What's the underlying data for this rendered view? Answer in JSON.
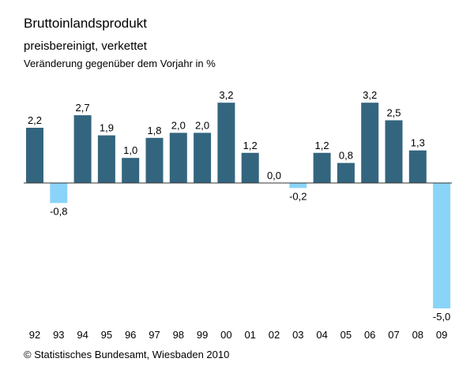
{
  "header": {
    "title": "Bruttoinlandsprodukt",
    "subtitle": "preisbereinigt, verkettet",
    "unit_note": "Veränderung gegenüber dem Vorjahr in %"
  },
  "footer": {
    "source": "© Statistisches Bundesamt, Wiesbaden 2010"
  },
  "colors": {
    "positive": "#34657f",
    "negative": "#8ad4f9",
    "baseline": "#333333"
  },
  "chart_data": {
    "type": "bar",
    "title": "Bruttoinlandsprodukt",
    "subtitle": "preisbereinigt, verkettet",
    "ylabel": "Veränderung gegenüber dem Vorjahr in %",
    "xlabel": "",
    "categories": [
      "92",
      "93",
      "94",
      "95",
      "96",
      "97",
      "98",
      "99",
      "00",
      "01",
      "02",
      "03",
      "04",
      "05",
      "06",
      "07",
      "08",
      "09"
    ],
    "values": [
      2.2,
      -0.8,
      2.7,
      1.9,
      1.0,
      1.8,
      2.0,
      2.0,
      3.2,
      1.2,
      0.0,
      -0.2,
      1.2,
      0.8,
      3.2,
      2.5,
      1.3,
      -5.0
    ],
    "value_labels": [
      "2,2",
      "-0,8",
      "2,7",
      "1,9",
      "1,0",
      "1,8",
      "2,0",
      "2,0",
      "3,2",
      "1,2",
      "0,0",
      "-0,2",
      "1,2",
      "0,8",
      "3,2",
      "2,5",
      "1,3",
      "-5,0"
    ],
    "ylim": [
      -5.0,
      3.2
    ],
    "grid": false,
    "legend": "none"
  }
}
